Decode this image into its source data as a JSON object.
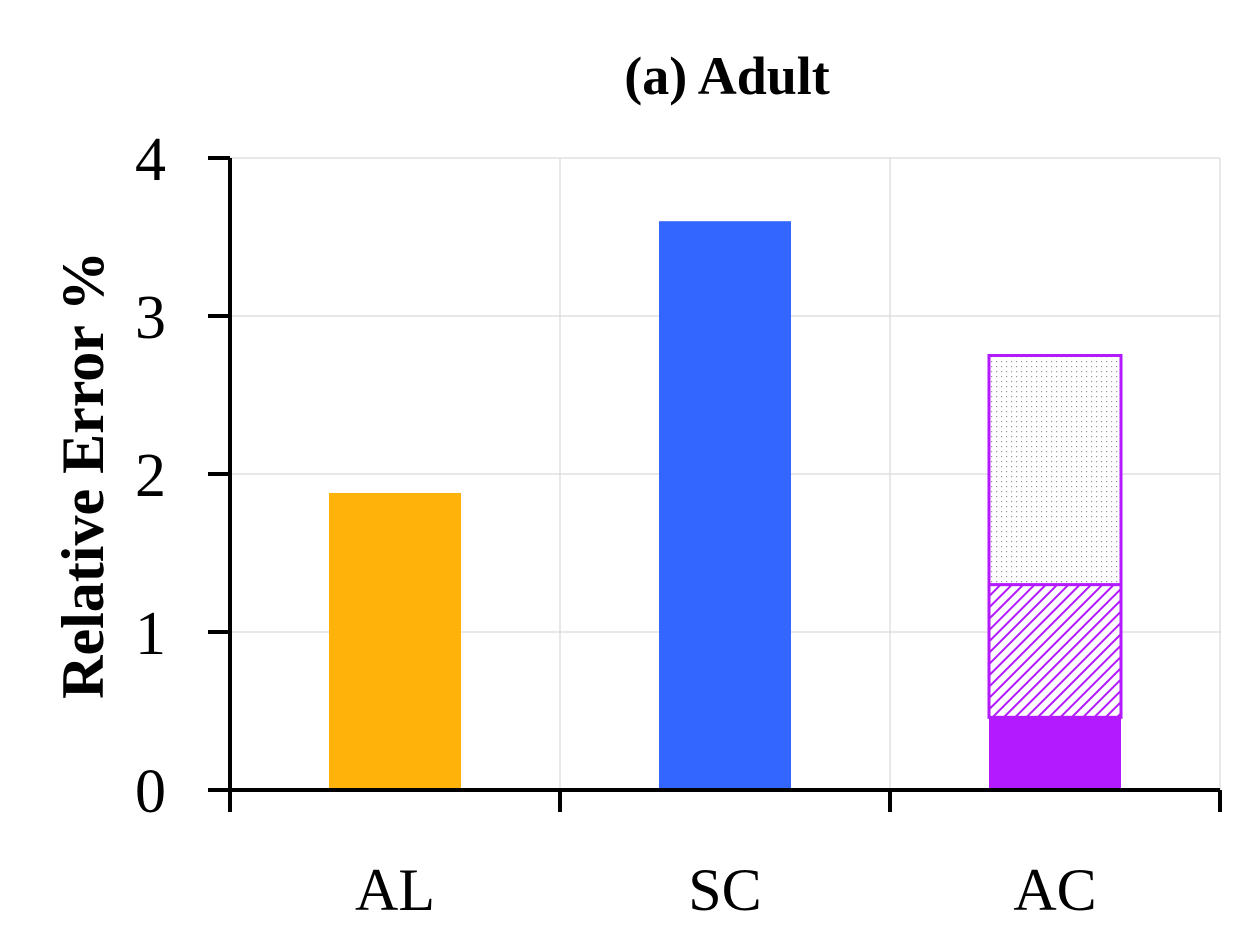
{
  "chart_data": {
    "type": "bar",
    "title": "(a) Adult",
    "xlabel": "",
    "ylabel": "Relative Error %",
    "ylim": [
      0,
      4
    ],
    "yticks": [
      "0",
      "1",
      "2",
      "3",
      "4"
    ],
    "categories": [
      "AL",
      "SC",
      "AC"
    ],
    "grid": true,
    "bars": [
      {
        "category": "AL",
        "value": 1.88,
        "color": "#FFB30A"
      },
      {
        "category": "SC",
        "value": 3.6,
        "color": "#3366FF"
      },
      {
        "category": "AC",
        "value": 2.75,
        "color": "#B31AFF",
        "stacked_segments": [
          {
            "value": 0.46,
            "pattern": "solid"
          },
          {
            "value": 0.84,
            "pattern": "diagonal-hatch"
          },
          {
            "value": 1.45,
            "pattern": "dotted"
          }
        ]
      }
    ]
  }
}
